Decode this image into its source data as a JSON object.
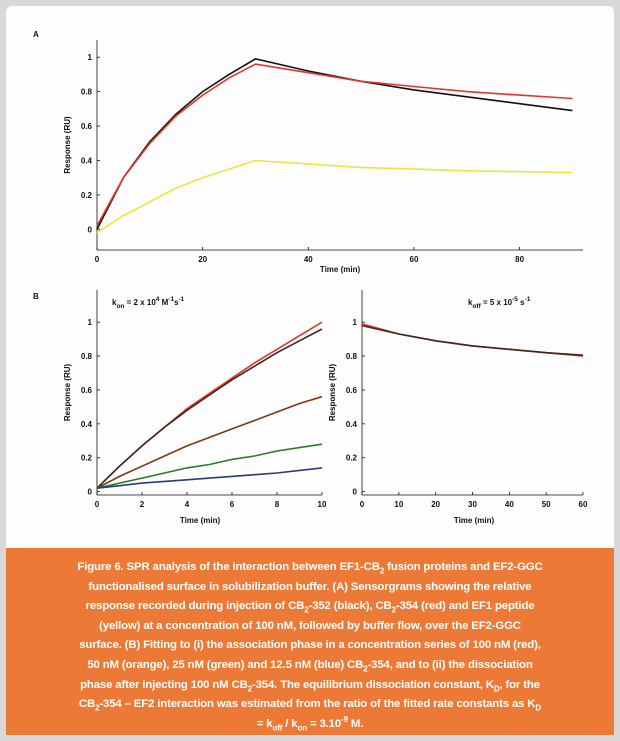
{
  "chart_data": [
    {
      "type": "line",
      "panel_label": "A",
      "y_label": "Response (RU)",
      "x_label": "Time (min)",
      "x": [
        0,
        5,
        10,
        15,
        20,
        25,
        30,
        40,
        50,
        60,
        70,
        80,
        90
      ],
      "xlim": [
        0,
        92
      ],
      "xticks": [
        0,
        20,
        40,
        60,
        80
      ],
      "ylim": [
        -0.12,
        1.1
      ],
      "yticks": [
        0,
        0.2,
        0.4,
        0.6,
        0.8,
        1
      ],
      "series": [
        {
          "color": "#e8e83a",
          "values": [
            -0.02,
            0.08,
            0.16,
            0.24,
            0.3,
            0.35,
            0.4,
            0.38,
            0.36,
            0.35,
            0.34,
            0.335,
            0.33
          ]
        },
        {
          "color": "#111111",
          "values": [
            0,
            0.3,
            0.51,
            0.67,
            0.8,
            0.9,
            0.99,
            0.92,
            0.86,
            0.81,
            0.77,
            0.73,
            0.69
          ]
        },
        {
          "color": "#e8332a",
          "values": [
            0.02,
            0.3,
            0.5,
            0.66,
            0.78,
            0.88,
            0.96,
            0.91,
            0.86,
            0.83,
            0.8,
            0.78,
            0.76
          ]
        }
      ]
    },
    {
      "type": "line",
      "panel_label": "B",
      "y_label": "Response (RU)",
      "x_label": "Time (min)",
      "annotation": [
        "k",
        {
          "sub": "on"
        },
        " = 2 x 10",
        {
          "sup": "4"
        },
        " M",
        {
          "sup": "-1"
        },
        "s",
        {
          "sup": "-1"
        }
      ],
      "x": [
        0,
        1,
        2,
        3,
        4,
        5,
        6,
        7,
        8,
        9,
        10
      ],
      "xlim": [
        0,
        10
      ],
      "xticks": [
        0,
        2,
        4,
        6,
        8,
        10
      ],
      "ylim": [
        -0.02,
        1.19
      ],
      "yticks": [
        0,
        0.2,
        0.4,
        0.6,
        0.8,
        1
      ],
      "series": [
        {
          "color": "#e8332a",
          "values": [
            0.02,
            0.15,
            0.27,
            0.38,
            0.49,
            0.58,
            0.67,
            0.76,
            0.84,
            0.92,
            1.0
          ]
        },
        {
          "color": "#3a2a20",
          "values": [
            0.02,
            0.15,
            0.27,
            0.38,
            0.48,
            0.57,
            0.66,
            0.74,
            0.82,
            0.89,
            0.96
          ]
        },
        {
          "color": "#7a3a12",
          "values": [
            0.02,
            0.09,
            0.15,
            0.21,
            0.27,
            0.32,
            0.37,
            0.42,
            0.47,
            0.52,
            0.56
          ]
        },
        {
          "color": "#2a7a2a",
          "values": [
            0.02,
            0.05,
            0.08,
            0.11,
            0.14,
            0.16,
            0.19,
            0.21,
            0.24,
            0.26,
            0.28
          ]
        },
        {
          "color": "#2a3a7a",
          "values": [
            0.02,
            0.035,
            0.05,
            0.06,
            0.07,
            0.08,
            0.09,
            0.1,
            0.11,
            0.125,
            0.14
          ]
        }
      ]
    },
    {
      "type": "line",
      "y_label": "Response (RU)",
      "x_label": "Time (min)",
      "annotation": [
        "k",
        {
          "sub": "off"
        },
        " = 5 x 10",
        {
          "sup": "-5"
        },
        " s",
        {
          "sup": "-1"
        }
      ],
      "x": [
        0,
        10,
        20,
        30,
        40,
        50,
        60
      ],
      "xlim": [
        0,
        60
      ],
      "xticks": [
        0,
        10,
        20,
        30,
        40,
        50,
        60
      ],
      "ylim": [
        -0.02,
        1.19
      ],
      "yticks": [
        0,
        0.2,
        0.4,
        0.6,
        0.8,
        1
      ],
      "series": [
        {
          "color": "#e8332a",
          "values": [
            0.99,
            0.93,
            0.89,
            0.86,
            0.84,
            0.82,
            0.8
          ]
        },
        {
          "color": "#3a2a20",
          "values": [
            0.98,
            0.93,
            0.89,
            0.86,
            0.84,
            0.82,
            0.805
          ]
        }
      ]
    }
  ],
  "caption": [
    [
      "Figure 6. SPR analysis of the interaction between EF1-CB",
      {
        "sub": "2"
      },
      " fusion proteins and EF2-GGC"
    ],
    [
      "functionalised surface in solubilization buffer. (A) Sensorgrams showing the relative"
    ],
    [
      "response recorded during injection of CB",
      {
        "sub": "2"
      },
      "-352 (black), CB",
      {
        "sub": "2"
      },
      "-354 (red) and EF1 peptide"
    ],
    [
      "(yellow) at a concentration of 100 nM, followed by buffer flow, over the EF2-GGC"
    ],
    [
      "surface. (B) Fitting to (i) the association phase in a concentration series of 100 nM (red),"
    ],
    [
      "50 nM (orange), 25 nM (green) and 12.5 nM (blue) CB",
      {
        "sub": "2"
      },
      "-354, and to (ii) the dissociation"
    ],
    [
      "phase after injecting 100 nM CB",
      {
        "sub": "2"
      },
      "-354. The equilibrium dissociation constant, K",
      {
        "sub": "D"
      },
      ", for the"
    ],
    [
      "CB",
      {
        "sub": "2"
      },
      "-354 – EF2 interaction was estimated from the ratio of the fitted rate constants as K",
      {
        "sub": "D"
      }
    ],
    [
      "= k",
      {
        "sub": "off"
      },
      " / k",
      {
        "sub": "on"
      },
      " = 3.10",
      {
        "sup": "-9"
      },
      " M."
    ]
  ]
}
